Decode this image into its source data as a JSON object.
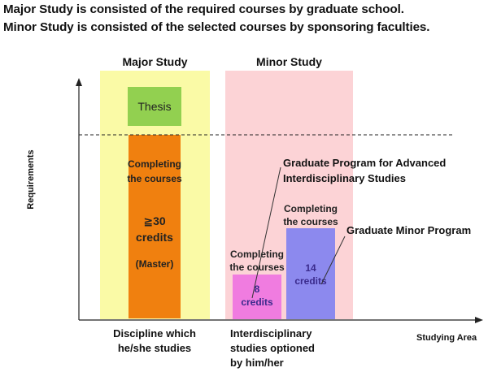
{
  "header": {
    "line1": "Major Study is consisted of the required courses by graduate school.",
    "line2": "Minor Study is consisted of the selected courses by sponsoring faculties."
  },
  "axes": {
    "y_label": "Requirements",
    "x_label": "Studying Area"
  },
  "major": {
    "title": "Major Study",
    "thesis": "Thesis",
    "completing_line1": "Completing",
    "completing_line2": "the courses",
    "credits_value": "≧30",
    "credits_unit": "credits",
    "degree": "(Master)",
    "bottom_line1": "Discipline which",
    "bottom_line2": "he/she studies"
  },
  "minor": {
    "title": "Minor Study",
    "left_completing_line1": "Completing",
    "left_completing_line2": "the courses",
    "left_credits_value": "8",
    "left_credits_unit": "credits",
    "right_completing_line1": "Completing",
    "right_completing_line2": "the courses",
    "right_credits_value": "14",
    "right_credits_unit": "credits",
    "bottom_line1": "Interdisciplinary",
    "bottom_line2": "studies optioned",
    "bottom_line3": "by him/her"
  },
  "callouts": {
    "advanced_line1": "Graduate Program for Advanced",
    "advanced_line2": "Interdisciplinary Studies",
    "minor_program": "Graduate Minor Program"
  },
  "colors": {
    "major_band": "#fafaa6",
    "minor_band": "#fcd3d6",
    "thesis": "#92d050",
    "major_block": "#f0800f",
    "minor_left_block": "#f07ce0",
    "minor_right_block": "#8c89ee",
    "credit_text": "#3a2a8c"
  }
}
